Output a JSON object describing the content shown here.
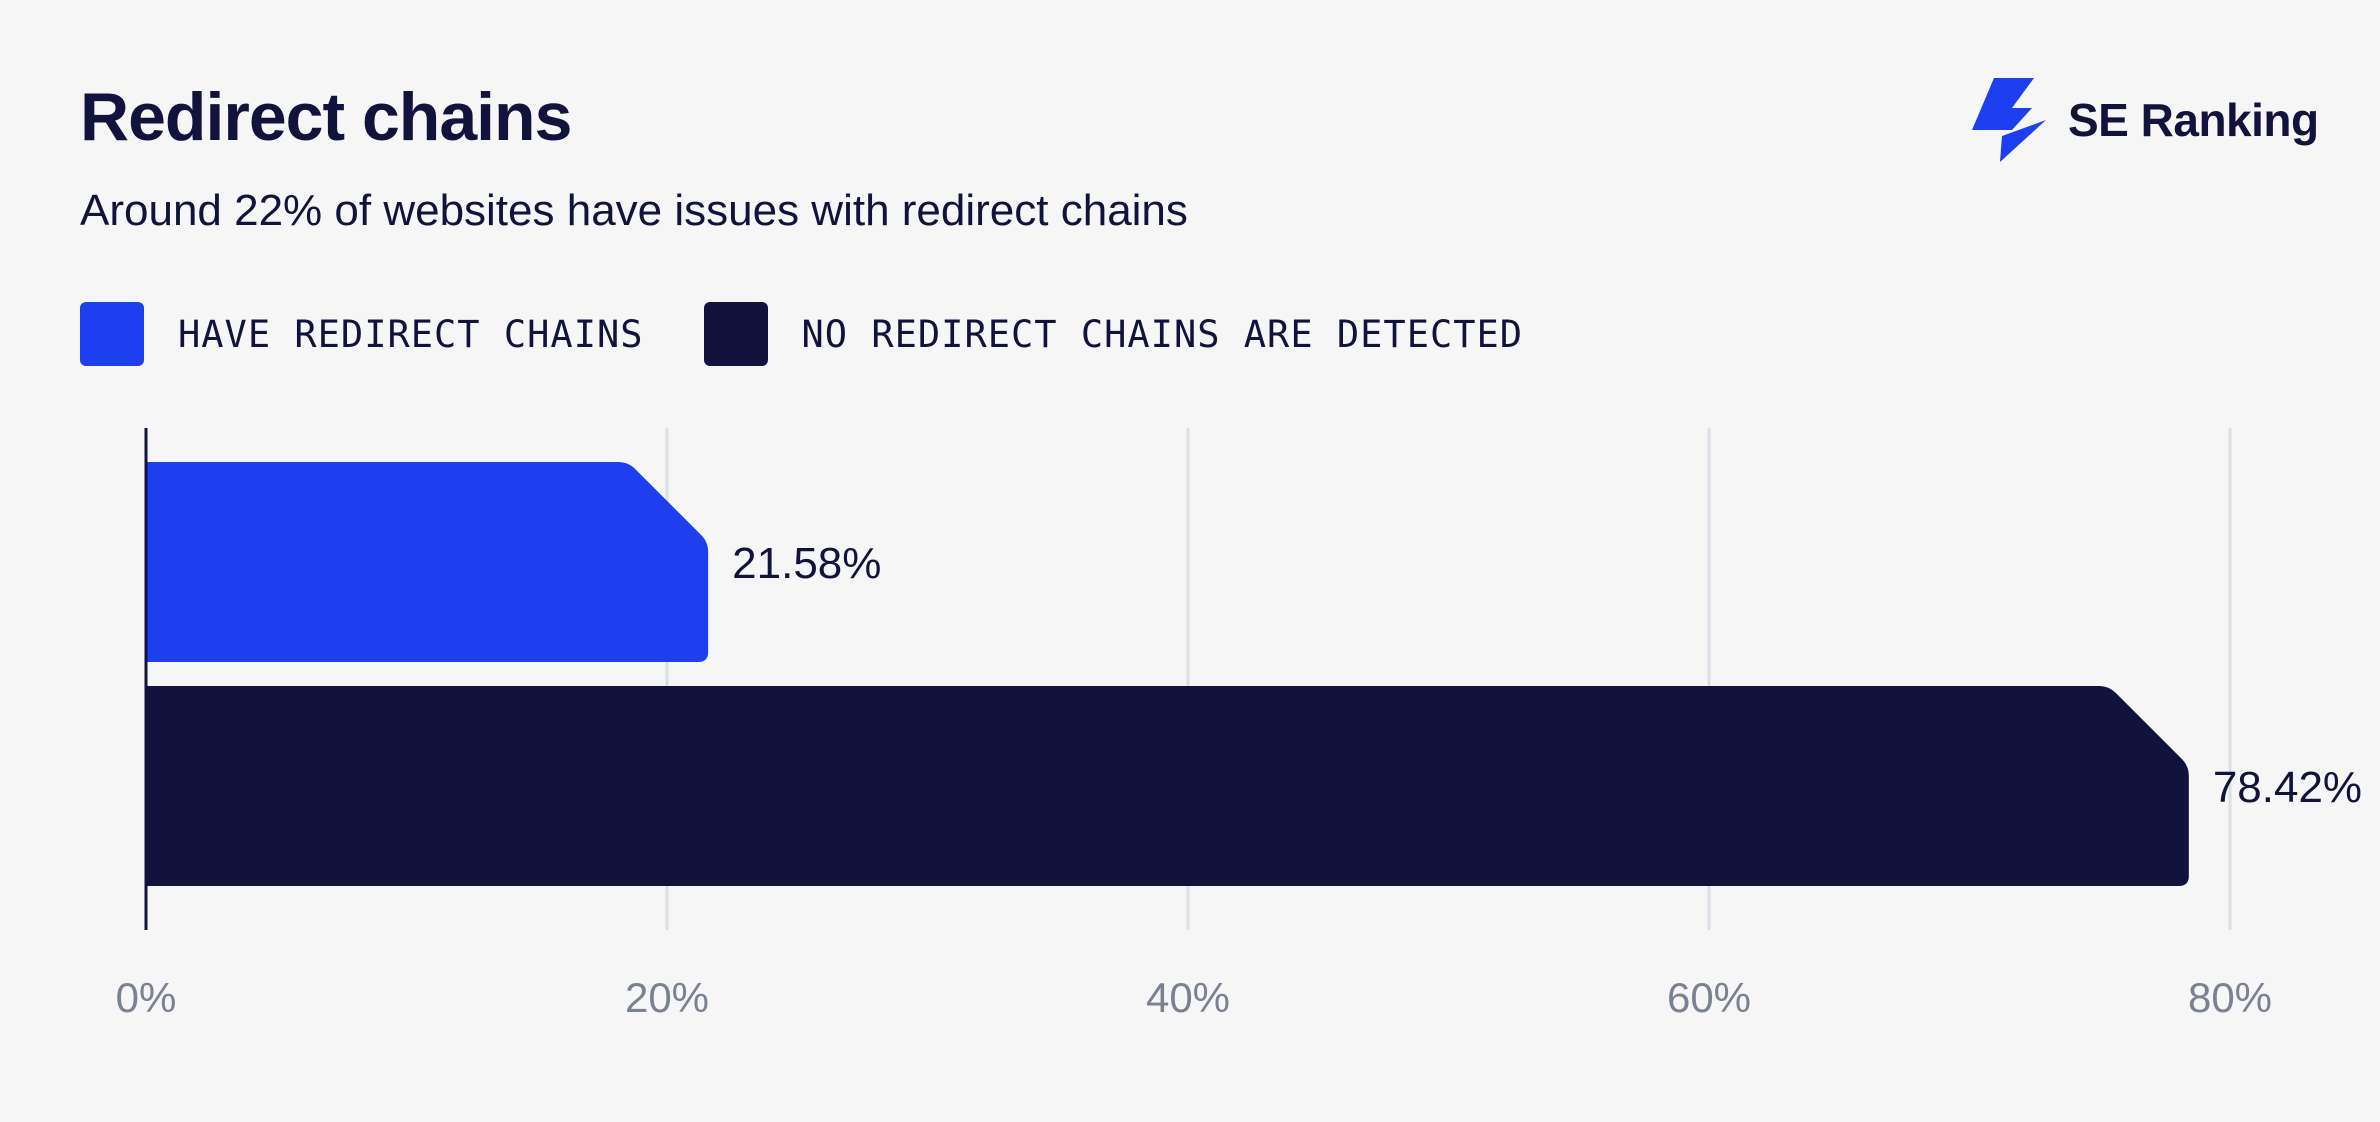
{
  "header": {
    "title": "Redirect chains",
    "subtitle": "Around 22% of websites have issues with redirect chains"
  },
  "brand": {
    "name": "SE Ranking",
    "icon": "se-ranking-logo-icon",
    "color": "#1d3ff0"
  },
  "legend": [
    {
      "label": "HAVE REDIRECT CHAINS",
      "color": "#1d3ff0"
    },
    {
      "label": "NO REDIRECT CHAINS ARE DETECTED",
      "color": "#11133d"
    }
  ],
  "chart_data": {
    "type": "bar",
    "orientation": "horizontal",
    "title": "Redirect chains",
    "subtitle": "Around 22% of websites have issues with redirect chains",
    "categories": [
      "HAVE REDIRECT CHAINS",
      "NO REDIRECT CHAINS ARE DETECTED"
    ],
    "values": [
      21.58,
      78.42
    ],
    "value_labels": [
      "21.58%",
      "78.42%"
    ],
    "colors": [
      "#1d3ff0",
      "#11133d"
    ],
    "xlim": [
      0,
      80
    ],
    "x_ticks": [
      0,
      20,
      40,
      60,
      80
    ],
    "x_tick_labels": [
      "0%",
      "20%",
      "40%",
      "60%",
      "80%"
    ],
    "xlabel": "",
    "ylabel": "",
    "grid": "vertical",
    "legend_position": "top-left"
  }
}
